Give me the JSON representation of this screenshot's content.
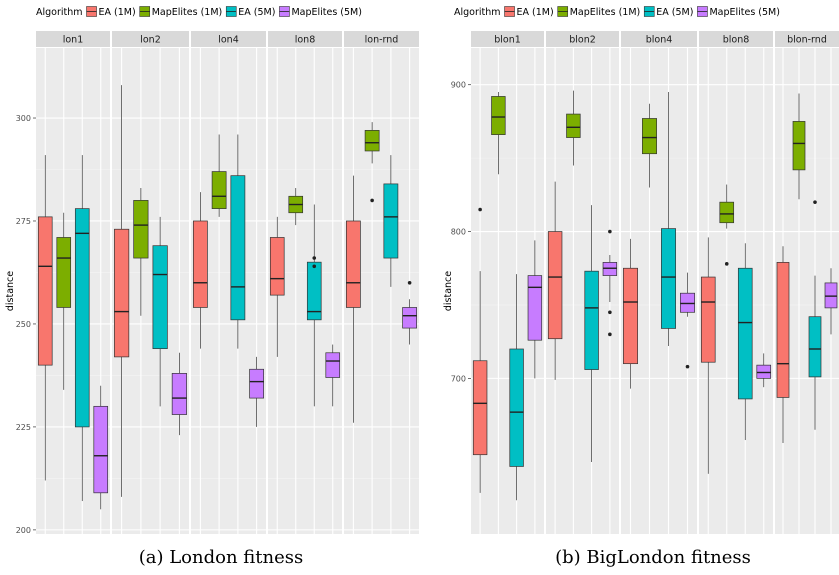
{
  "legend_title": "Algorithm",
  "legend_items": [
    {
      "label": "EA (1M)",
      "color": "#F8766D"
    },
    {
      "label": "MapElites (1M)",
      "color": "#7CAE00"
    },
    {
      "label": "EA (5M)",
      "color": "#00BFC4"
    },
    {
      "label": "MapElites (5M)",
      "color": "#C77CFF"
    }
  ],
  "chart_data": [
    {
      "type": "box",
      "caption": "(a) London fitness",
      "ylabel": "distance",
      "ylim": [
        199,
        317
      ],
      "yticks": [
        200,
        225,
        250,
        275,
        300
      ],
      "facets": [
        {
          "name": "lon1",
          "boxes": [
            {
              "series": "EA (1M)",
              "min": 212,
              "q1": 240,
              "median": 264,
              "q3": 276,
              "max": 291,
              "outliers": []
            },
            {
              "series": "MapElites (1M)",
              "min": 234,
              "q1": 254,
              "median": 266,
              "q3": 271,
              "max": 277,
              "outliers": []
            },
            {
              "series": "EA (5M)",
              "min": 207,
              "q1": 225,
              "median": 272,
              "q3": 278,
              "max": 291,
              "outliers": []
            },
            {
              "series": "MapElites (5M)",
              "min": 205,
              "q1": 209,
              "median": 218,
              "q3": 230,
              "max": 235,
              "outliers": []
            }
          ]
        },
        {
          "name": "lon2",
          "boxes": [
            {
              "series": "EA (1M)",
              "min": 208,
              "q1": 242,
              "median": 253,
              "q3": 273,
              "max": 308,
              "outliers": []
            },
            {
              "series": "MapElites (1M)",
              "min": 252,
              "q1": 266,
              "median": 274,
              "q3": 280,
              "max": 283,
              "outliers": []
            },
            {
              "series": "EA (5M)",
              "min": 230,
              "q1": 244,
              "median": 262,
              "q3": 269,
              "max": 276,
              "outliers": []
            },
            {
              "series": "MapElites (5M)",
              "min": 223,
              "q1": 228,
              "median": 232,
              "q3": 238,
              "max": 243,
              "outliers": []
            }
          ]
        },
        {
          "name": "lon4",
          "boxes": [
            {
              "series": "EA (1M)",
              "min": 244,
              "q1": 254,
              "median": 260,
              "q3": 275,
              "max": 282,
              "outliers": []
            },
            {
              "series": "MapElites (1M)",
              "min": 276,
              "q1": 278,
              "median": 281,
              "q3": 287,
              "max": 296,
              "outliers": []
            },
            {
              "series": "EA (5M)",
              "min": 244,
              "q1": 251,
              "median": 259,
              "q3": 286,
              "max": 296,
              "outliers": []
            },
            {
              "series": "MapElites (5M)",
              "min": 225,
              "q1": 232,
              "median": 236,
              "q3": 239,
              "max": 242,
              "outliers": []
            }
          ]
        },
        {
          "name": "lon8",
          "boxes": [
            {
              "series": "EA (1M)",
              "min": 242,
              "q1": 257,
              "median": 261,
              "q3": 271,
              "max": 276,
              "outliers": []
            },
            {
              "series": "MapElites (1M)",
              "min": 274,
              "q1": 277,
              "median": 279,
              "q3": 281,
              "max": 283,
              "outliers": []
            },
            {
              "series": "EA (5M)",
              "min": 230,
              "q1": 251,
              "median": 253,
              "q3": 265,
              "max": 279,
              "outliers": [
                264,
                266
              ]
            },
            {
              "series": "MapElites (5M)",
              "min": 230,
              "q1": 237,
              "median": 241,
              "q3": 243,
              "max": 245,
              "outliers": []
            }
          ]
        },
        {
          "name": "lon-rnd",
          "boxes": [
            {
              "series": "EA (1M)",
              "min": 226,
              "q1": 254,
              "median": 260,
              "q3": 275,
              "max": 286,
              "outliers": []
            },
            {
              "series": "MapElites (1M)",
              "min": 289,
              "q1": 292,
              "median": 294,
              "q3": 297,
              "max": 299,
              "outliers": [
                280
              ]
            },
            {
              "series": "EA (5M)",
              "min": 259,
              "q1": 266,
              "median": 276,
              "q3": 284,
              "max": 291,
              "outliers": []
            },
            {
              "series": "MapElites (5M)",
              "min": 245,
              "q1": 249,
              "median": 252,
              "q3": 254,
              "max": 256,
              "outliers": [
                260
              ]
            }
          ]
        }
      ]
    },
    {
      "type": "box",
      "caption": "(b) BigLondon fitness",
      "ylabel": "distance",
      "ylim": [
        594,
        925
      ],
      "yticks": [
        700,
        800,
        900
      ],
      "facets": [
        {
          "name": "blon1",
          "boxes": [
            {
              "series": "EA (1M)",
              "min": 622,
              "q1": 648,
              "median": 683,
              "q3": 712,
              "max": 773,
              "outliers": [
                815
              ]
            },
            {
              "series": "MapElites (1M)",
              "min": 839,
              "q1": 866,
              "median": 878,
              "q3": 892,
              "max": 895,
              "outliers": []
            },
            {
              "series": "EA (5M)",
              "min": 617,
              "q1": 640,
              "median": 677,
              "q3": 720,
              "max": 771,
              "outliers": []
            },
            {
              "series": "MapElites (5M)",
              "min": 700,
              "q1": 726,
              "median": 762,
              "q3": 770,
              "max": 794,
              "outliers": []
            }
          ]
        },
        {
          "name": "blon2",
          "boxes": [
            {
              "series": "EA (1M)",
              "min": 699,
              "q1": 727,
              "median": 769,
              "q3": 800,
              "max": 834,
              "outliers": []
            },
            {
              "series": "MapElites (1M)",
              "min": 845,
              "q1": 864,
              "median": 871,
              "q3": 880,
              "max": 896,
              "outliers": []
            },
            {
              "series": "EA (5M)",
              "min": 643,
              "q1": 706,
              "median": 748,
              "q3": 773,
              "max": 818,
              "outliers": []
            },
            {
              "series": "MapElites (5M)",
              "min": 752,
              "q1": 770,
              "median": 775,
              "q3": 779,
              "max": 784,
              "outliers": [
                800,
                745,
                730
              ]
            }
          ]
        },
        {
          "name": "blon4",
          "boxes": [
            {
              "series": "EA (1M)",
              "min": 693,
              "q1": 710,
              "median": 752,
              "q3": 775,
              "max": 795,
              "outliers": []
            },
            {
              "series": "MapElites (1M)",
              "min": 830,
              "q1": 853,
              "median": 864,
              "q3": 877,
              "max": 887,
              "outliers": []
            },
            {
              "series": "EA (5M)",
              "min": 722,
              "q1": 734,
              "median": 769,
              "q3": 802,
              "max": 895,
              "outliers": []
            },
            {
              "series": "MapElites (5M)",
              "min": 742,
              "q1": 745,
              "median": 751,
              "q3": 758,
              "max": 772,
              "outliers": [
                708
              ]
            }
          ]
        },
        {
          "name": "blon8",
          "boxes": [
            {
              "series": "EA (1M)",
              "min": 635,
              "q1": 711,
              "median": 752,
              "q3": 769,
              "max": 796,
              "outliers": []
            },
            {
              "series": "MapElites (1M)",
              "min": 802,
              "q1": 806,
              "median": 812,
              "q3": 820,
              "max": 832,
              "outliers": [
                778
              ]
            },
            {
              "series": "EA (5M)",
              "min": 658,
              "q1": 686,
              "median": 738,
              "q3": 775,
              "max": 792,
              "outliers": []
            },
            {
              "series": "MapElites (5M)",
              "min": 694,
              "q1": 700,
              "median": 704,
              "q3": 709,
              "max": 717,
              "outliers": []
            }
          ]
        },
        {
          "name": "blon-rnd",
          "boxes": [
            {
              "series": "EA (1M)",
              "min": 656,
              "q1": 687,
              "median": 710,
              "q3": 779,
              "max": 790,
              "outliers": []
            },
            {
              "series": "MapElites (1M)",
              "min": 822,
              "q1": 842,
              "median": 860,
              "q3": 875,
              "max": 894,
              "outliers": []
            },
            {
              "series": "EA (5M)",
              "min": 665,
              "q1": 701,
              "median": 720,
              "q3": 742,
              "max": 770,
              "outliers": [
                820
              ]
            },
            {
              "series": "MapElites (5M)",
              "min": 730,
              "q1": 748,
              "median": 756,
              "q3": 765,
              "max": 775,
              "outliers": []
            }
          ]
        }
      ]
    }
  ]
}
